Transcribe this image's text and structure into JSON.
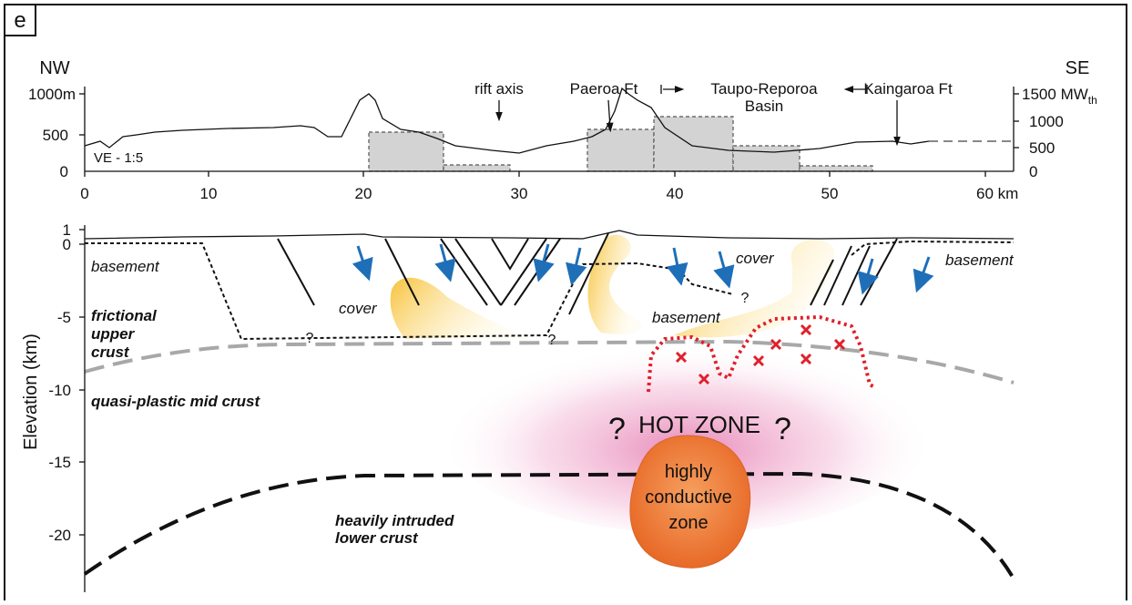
{
  "panel_label": "e",
  "profile": {
    "left_label": "NW",
    "right_label": "SE",
    "left_axis_ticks": [
      "1000m",
      "500",
      "0"
    ],
    "right_axis_ticks": [
      "1500",
      "1000",
      "500",
      "0"
    ],
    "right_axis_unit": "MW",
    "right_axis_unit_sub": "th",
    "x_ticks": [
      "0",
      "10",
      "20",
      "30",
      "40",
      "50",
      "60 km"
    ],
    "ve_label": "VE - 1:5",
    "annotations": {
      "rift_axis": "rift axis",
      "paeroa": "Paeroa Ft",
      "basin": [
        "Taupo-Reporoa",
        "Basin"
      ],
      "kaingaroa": "Kaingaroa Ft"
    }
  },
  "section": {
    "y_axis_title": "Elevation (km)",
    "y_ticks": [
      "1",
      "0",
      "-5",
      "-10",
      "-15",
      "-20"
    ],
    "labels": {
      "basement_left": "basement",
      "frictional": [
        "frictional",
        "upper",
        "crust"
      ],
      "quasi_plastic": "quasi-plastic mid crust",
      "lower_crust": [
        "heavily intruded",
        "lower crust"
      ],
      "cover_left": "cover",
      "cover_right": "cover",
      "basement_right": "basement",
      "basement_center": "basement",
      "hot_zone": "HOT ZONE",
      "conductive": [
        "highly",
        "conductive",
        "zone"
      ]
    },
    "question_marks": [
      "?",
      "?",
      "?",
      "?",
      "?"
    ]
  }
}
